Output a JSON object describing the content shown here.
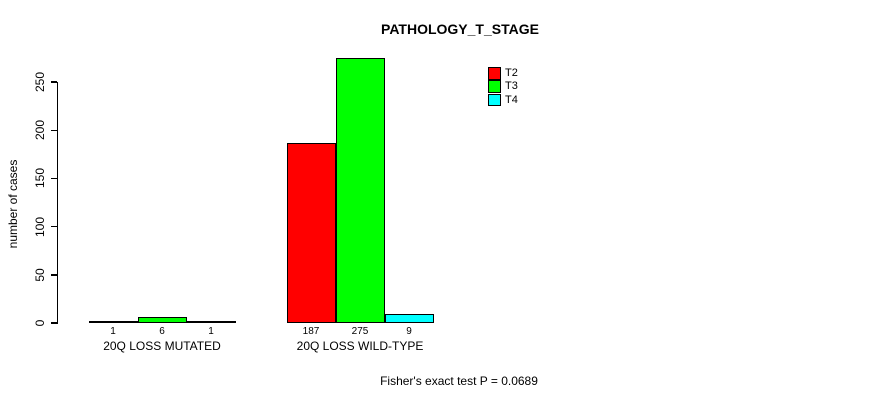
{
  "title": "PATHOLOGY_T_STAGE",
  "y_axis_label": "number of cases",
  "annotation": "Fisher's exact test P = 0.0689",
  "chart_data": {
    "type": "bar",
    "title": "PATHOLOGY_T_STAGE",
    "xlabel": "",
    "ylabel": "number of cases",
    "categories": [
      "20Q LOSS MUTATED",
      "20Q LOSS WILD-TYPE"
    ],
    "series": [
      {
        "name": "T2",
        "color": "#FF0000",
        "values": [
          1,
          187
        ]
      },
      {
        "name": "T3",
        "color": "#00FF00",
        "values": [
          6,
          275
        ]
      },
      {
        "name": "T4",
        "color": "#00FFFF",
        "values": [
          1,
          9
        ]
      }
    ],
    "value_labels": [
      [
        "1",
        "6",
        "1"
      ],
      [
        "187",
        "275",
        "9"
      ]
    ],
    "yticks": [
      0,
      50,
      100,
      150,
      200,
      250
    ],
    "ylim": [
      0,
      275
    ],
    "grid": false,
    "legend_position": "top-right",
    "legend_entries": [
      "T2",
      "T3",
      "T4"
    ],
    "annotation": "Fisher's exact test P = 0.0689",
    "bar_border_color": "#000000",
    "background_color": "#FFFFFF"
  }
}
